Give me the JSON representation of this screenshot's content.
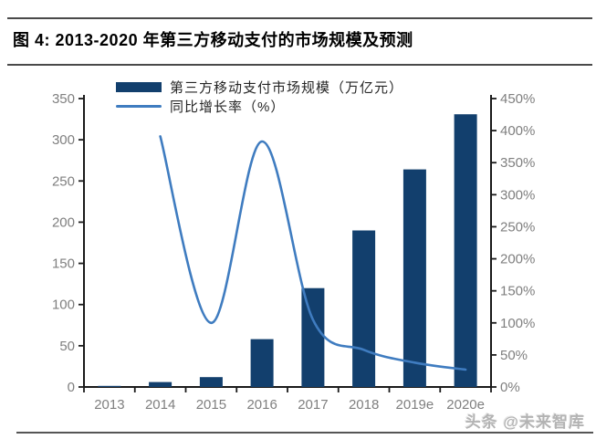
{
  "figure": {
    "title": "图 4:  2013-2020 年第三方移动支付的市场规模及预测",
    "watermark": "头条 @未来智库"
  },
  "colors": {
    "bar": "#123f6d",
    "line": "#3f7cc0",
    "axis": "#1a1a1a",
    "tick_label": "#7f7f7f",
    "legend_text": "#262626"
  },
  "chart_data": {
    "type": "bar+line",
    "title": "2013-2020 年第三方移动支付的市场规模及预测",
    "categories": [
      "2013",
      "2014",
      "2015",
      "2016",
      "2017",
      "2018",
      "2019e",
      "2020e"
    ],
    "series": [
      {
        "name": "第三方移动支付市场规模（万亿元）",
        "type": "bar",
        "axis": "left",
        "color": "#123f6d",
        "values": [
          1.3,
          6,
          12,
          58,
          120,
          190,
          264,
          331
        ]
      },
      {
        "name": "同比增长率（%）",
        "type": "line",
        "axis": "right",
        "color": "#3f7cc0",
        "values": [
          null,
          391,
          100,
          383,
          105,
          58,
          38,
          27
        ]
      }
    ],
    "left_axis": {
      "min": 0,
      "max": 350,
      "step": 50,
      "ticks": [
        "0",
        "50",
        "100",
        "150",
        "200",
        "250",
        "300",
        "350"
      ]
    },
    "right_axis": {
      "min": 0,
      "max": 450,
      "step": 50,
      "ticks": [
        "0%",
        "50%",
        "100%",
        "150%",
        "200%",
        "250%",
        "300%",
        "350%",
        "400%",
        "450%"
      ]
    },
    "legend_position": "top-left-inside",
    "grid": false
  }
}
